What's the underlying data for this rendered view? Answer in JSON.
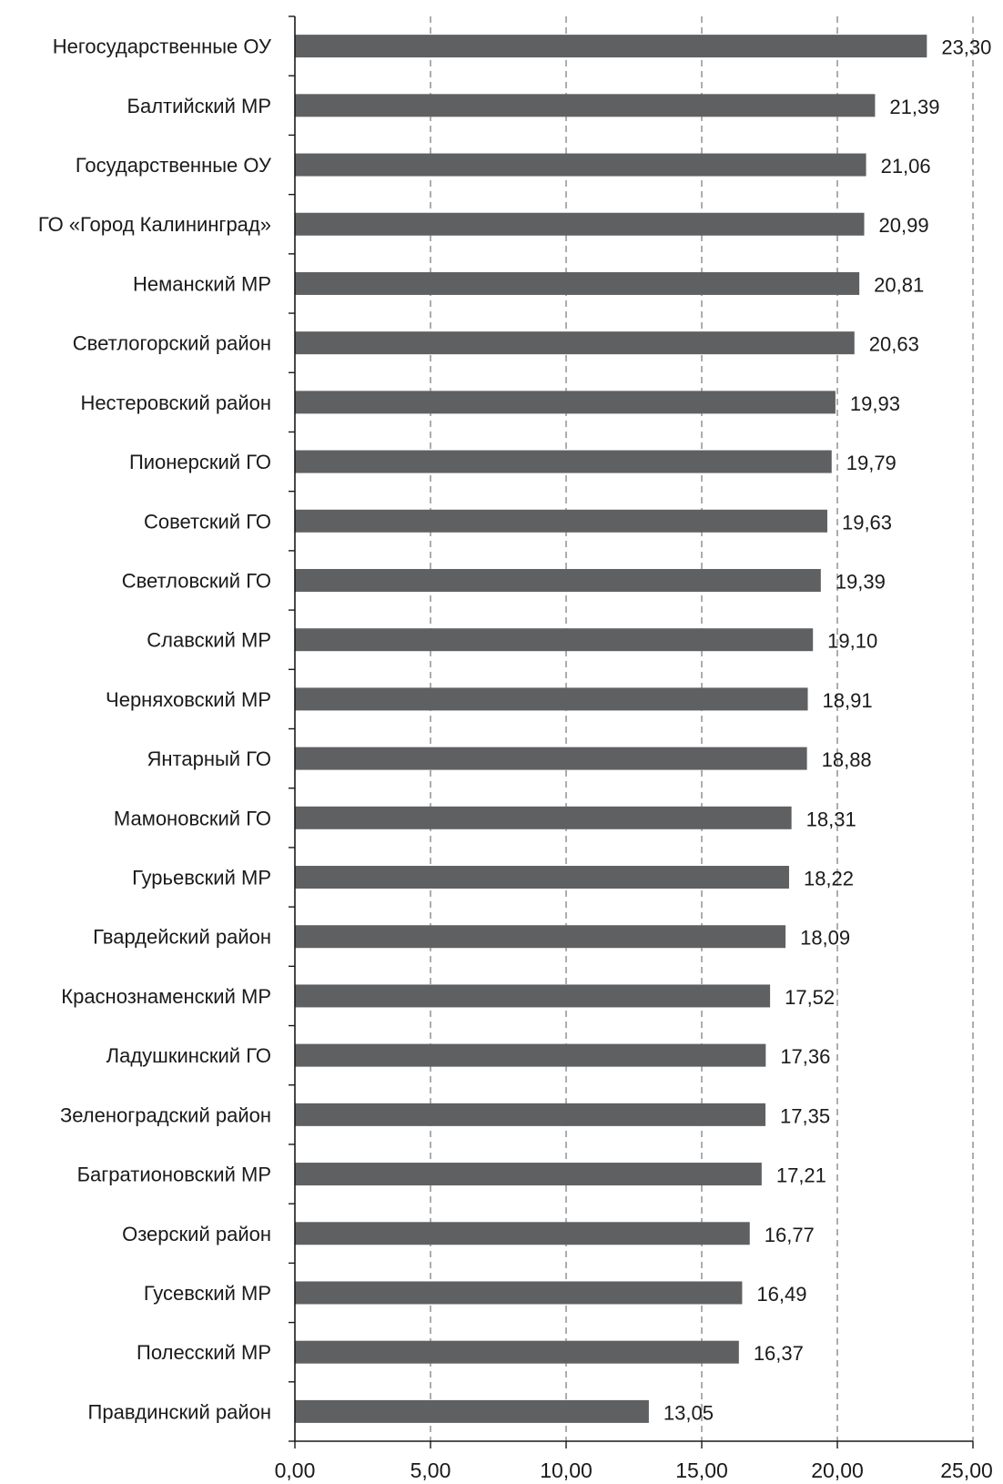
{
  "chart_data": {
    "type": "bar",
    "orientation": "horizontal",
    "categories": [
      "Негосударственные ОУ",
      "Балтийский МР",
      "Государственные ОУ",
      "ГО «Город Калининград»",
      "Неманский МР",
      "Светлогорский район",
      "Нестеровский район",
      "Пионерский ГО",
      "Советский ГО",
      "Светловский ГО",
      "Славский МР",
      "Черняховский МР",
      "Янтарный ГО",
      "Мамоновский ГО",
      "Гурьевский МР",
      "Гвардейский район",
      "Краснознаменский МР",
      "Ладушкинский ГО",
      "Зеленоградский район",
      "Багратионовский МР",
      "Озерский район",
      "Гусевский МР",
      "Полесский МР",
      "Правдинский район"
    ],
    "values": [
      23.3,
      21.39,
      21.06,
      20.99,
      20.81,
      20.63,
      19.93,
      19.79,
      19.63,
      19.39,
      19.1,
      18.91,
      18.88,
      18.31,
      18.22,
      18.09,
      17.52,
      17.36,
      17.35,
      17.21,
      16.77,
      16.49,
      16.37,
      13.05
    ],
    "value_labels": [
      "23,30",
      "21,39",
      "21,06",
      "20,99",
      "20,81",
      "20,63",
      "19,93",
      "19,79",
      "19,63",
      "19,39",
      "19,10",
      "18,91",
      "18,88",
      "18,31",
      "18,22",
      "18,09",
      "17,52",
      "17,36",
      "17,35",
      "17,21",
      "16,77",
      "16,49",
      "16,37",
      "13,05"
    ],
    "xlim": [
      0,
      25
    ],
    "x_ticks": [
      0,
      5,
      10,
      15,
      20,
      25
    ],
    "x_tick_labels": [
      "0,00",
      "5,00",
      "10,00",
      "15,00",
      "20,00",
      "25,00"
    ],
    "grid": "vertical dashed",
    "legend": "none",
    "title": "",
    "xlabel": "",
    "ylabel": "",
    "colors": {
      "bar": "#5f6062",
      "grid": "#8a8a8a",
      "axis": "#1a1a1a",
      "text": "#1a1a1a"
    }
  }
}
